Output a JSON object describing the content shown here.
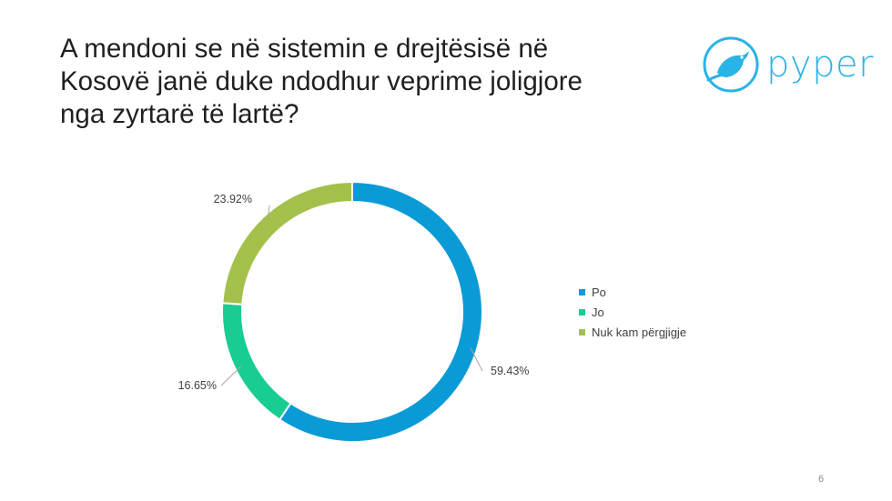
{
  "slide": {
    "title_lines": [
      "A mendoni se në sistemin e drejtësisë në",
      "Kosovë janë duke ndodhur veprime joligjore",
      "nga zyrtarë të lartë?"
    ],
    "logo_text": "pyper",
    "logo_icon": "bird-icon",
    "page_number": "6"
  },
  "colors": {
    "Po": "#0a9bd6",
    "Jo": "#19cc93",
    "Nuk kam përgjigje": "#a3c14a",
    "logo": "#2ab3e6"
  },
  "chart_data": {
    "type": "pie",
    "style": "donut",
    "title": "",
    "categories": [
      "Po",
      "Jo",
      "Nuk kam përgjigje"
    ],
    "values": [
      59.43,
      16.65,
      23.92
    ],
    "data_labels": [
      "59.43%",
      "16.65%",
      "23.92%"
    ],
    "legend": {
      "position": "right",
      "entries": [
        "Po",
        "Jo",
        "Nuk kam përgjigje"
      ]
    }
  }
}
